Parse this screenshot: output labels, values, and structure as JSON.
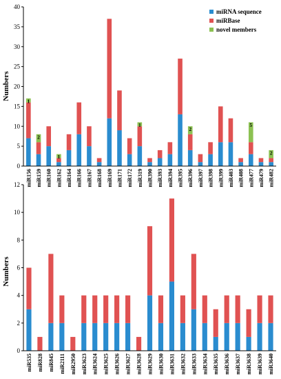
{
  "colors": {
    "mirna_sequence": "#2a8ccf",
    "mirbase": "#e05252",
    "novel_members": "#8cc152"
  },
  "chart_data": [
    {
      "type": "bar",
      "stacked": true,
      "title": "",
      "xlabel": "",
      "ylabel": "Numbers",
      "ylim": [
        0,
        40
      ],
      "yticks": [
        0,
        5,
        10,
        15,
        20,
        25,
        30,
        35,
        40
      ],
      "grid": false,
      "legend": {
        "placement": "top-right",
        "entries": [
          "miRNA sequence",
          "miRBase",
          "novel members"
        ]
      },
      "categories": [
        "miR156",
        "miR159",
        "miR160",
        "miR162",
        "miR164",
        "miR166",
        "miR167",
        "miR168",
        "miR169",
        "miR171",
        "miR172",
        "miR319",
        "miR390",
        "miR393",
        "miR394",
        "miR395",
        "miR396",
        "miR397",
        "miR398",
        "miR399",
        "miR403",
        "miR408",
        "miR477",
        "miR479",
        "miR482"
      ],
      "series": [
        {
          "name": "miRNA sequence",
          "values": [
            7,
            3,
            5,
            1,
            4,
            8,
            5,
            1,
            12,
            9,
            3,
            5,
            1,
            2,
            3,
            13,
            4,
            1,
            3,
            6,
            6,
            1,
            3,
            1,
            1
          ]
        },
        {
          "name": "miRBase",
          "values": [
            9,
            3,
            5,
            1,
            4,
            8,
            5,
            1,
            25,
            10,
            4,
            5,
            1,
            2,
            3,
            14,
            4,
            2,
            3,
            9,
            6,
            1,
            3,
            1,
            1
          ]
        },
        {
          "name": "novel members",
          "values": [
            1,
            2,
            0,
            1,
            0,
            0,
            0,
            0,
            0,
            0,
            0,
            1,
            0,
            0,
            0,
            0,
            2,
            0,
            0,
            0,
            0,
            0,
            5,
            0,
            2
          ]
        }
      ],
      "annotations": [
        "1",
        "2",
        "",
        "1",
        "",
        "",
        "",
        "",
        "",
        "",
        "",
        "1",
        "",
        "",
        "",
        "",
        "2",
        "",
        "",
        "",
        "",
        "",
        "5",
        "",
        "2"
      ]
    },
    {
      "type": "bar",
      "stacked": true,
      "title": "",
      "xlabel": "",
      "ylabel": "Numbers",
      "ylim": [
        0,
        12
      ],
      "yticks": [
        0,
        2,
        4,
        6,
        8,
        10,
        12
      ],
      "grid": false,
      "categories": [
        "miR535",
        "miR828",
        "miR845",
        "miR2111",
        "miR2950",
        "miR3623",
        "miR3624",
        "miR3625",
        "miR3626",
        "miR3627",
        "miR3628",
        "miR3629",
        "miR3630",
        "miR3631",
        "miR3632",
        "miR3633",
        "miR3634",
        "miR3635",
        "miR3636",
        "miR3637",
        "miR3638",
        "miR3639",
        "miR3640"
      ],
      "series": [
        {
          "name": "miRNA sequence",
          "values": [
            3,
            0,
            2,
            2,
            0,
            2,
            2,
            2,
            2,
            2,
            0,
            4,
            2,
            5,
            2,
            3,
            2,
            1,
            2,
            2,
            1,
            2,
            2
          ]
        },
        {
          "name": "miRBase",
          "values": [
            3,
            1,
            5,
            2,
            1,
            2,
            2,
            2,
            2,
            2,
            1,
            5,
            2,
            6,
            2,
            4,
            2,
            2,
            2,
            2,
            2,
            2,
            2
          ]
        }
      ]
    }
  ]
}
